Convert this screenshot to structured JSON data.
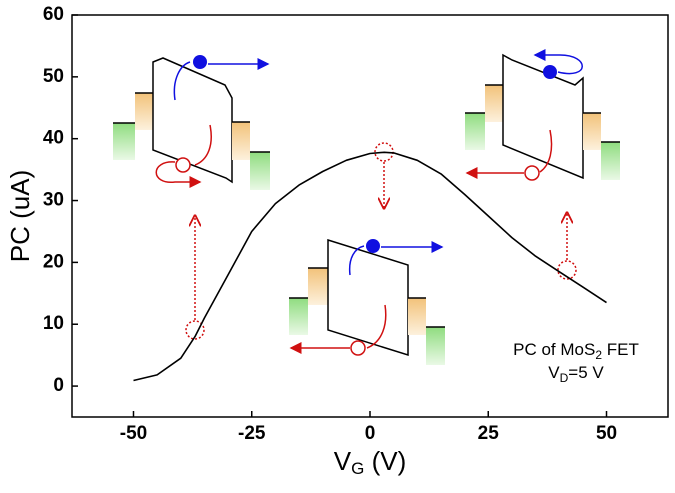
{
  "chart_data": {
    "type": "line",
    "x_label": {
      "main": "V",
      "sub": "G",
      "rest": " (V)"
    },
    "y_label": "PC (uA)",
    "annotation": {
      "line1": {
        "main": "PC of MoS",
        "sub": "2",
        "rest": " FET"
      },
      "line2": {
        "main": "V",
        "sub": "D",
        "rest": "=5 V"
      }
    },
    "x": [
      -50,
      -45,
      -40,
      -37,
      -35,
      -30,
      -25,
      -20,
      -15,
      -10,
      -5,
      0,
      3,
      5,
      10,
      15,
      20,
      25,
      30,
      35,
      40,
      45,
      50
    ],
    "series": [
      {
        "color": "#000000",
        "values": [
          0.9,
          1.8,
          4.5,
          8,
          11,
          18,
          25,
          29.5,
          32.5,
          34.7,
          36.5,
          37.6,
          37.8,
          37.7,
          36.5,
          34.3,
          31,
          27.5,
          24,
          21,
          18.5,
          16,
          13.5
        ]
      }
    ],
    "xlim": [
      -63,
      63
    ],
    "ylim": [
      -5,
      60
    ],
    "xticks": [
      -50,
      -25,
      0,
      25,
      50
    ],
    "yticks": [
      0,
      10,
      20,
      30,
      40,
      50,
      60
    ]
  }
}
